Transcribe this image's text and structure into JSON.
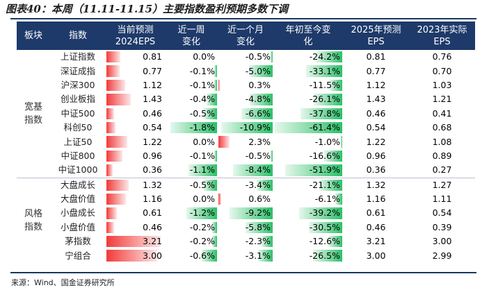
{
  "caption": "图表40：本周（11.11-11.15）主要指数盈利预期多数下调",
  "source": "来源：Wind、国金证券研究所",
  "colors": {
    "header_bg": "#1e3a6a",
    "neg": "#2cc068",
    "pos": "#f23a3a"
  },
  "headers": {
    "block": "板块",
    "index": "指数",
    "eps_current": "当前预测\n2024EPS",
    "chg_week": "近一周\n变化",
    "chg_month": "近一个月\n变化",
    "chg_ytd": "年初至今变\n化",
    "eps_2025": "2025年预测\nEPS",
    "eps_2023": "2023年实际\nEPS"
  },
  "groups": [
    {
      "label": "宽基\n指数",
      "rows": [
        {
          "name": "上证指数",
          "eps": "0.81",
          "week": "0.0%",
          "month": "-0.5%",
          "ytd": "-24.2%",
          "eps2025": "0.81",
          "eps2023": "0.76"
        },
        {
          "name": "深证成指",
          "eps": "0.77",
          "week": "-0.1%",
          "month": "-5.0%",
          "ytd": "-33.1%",
          "eps2025": "0.77",
          "eps2023": "0.70"
        },
        {
          "name": "沪深300",
          "eps": "1.12",
          "week": "-0.1%",
          "month": "0.3%",
          "ytd": "-11.5%",
          "eps2025": "1.12",
          "eps2023": "1.03"
        },
        {
          "name": "创业板指",
          "eps": "1.43",
          "week": "-0.4%",
          "month": "-4.8%",
          "ytd": "-26.1%",
          "eps2025": "1.43",
          "eps2023": "1.21"
        },
        {
          "name": "中证500",
          "eps": "0.46",
          "week": "-0.5%",
          "month": "-6.6%",
          "ytd": "-37.8%",
          "eps2025": "0.46",
          "eps2023": "0.41"
        },
        {
          "name": "科创50",
          "eps": "0.54",
          "week": "-1.8%",
          "month": "-10.9%",
          "ytd": "-61.4%",
          "eps2025": "0.54",
          "eps2023": "0.68"
        },
        {
          "name": "上证50",
          "eps": "1.22",
          "week": "0.0%",
          "month": "2.3%",
          "ytd": "-1.0%",
          "eps2025": "1.22",
          "eps2023": "1.08"
        },
        {
          "name": "中证800",
          "eps": "0.96",
          "week": "-0.1%",
          "month": "-0.5%",
          "ytd": "-16.6%",
          "eps2025": "0.96",
          "eps2023": "0.89"
        },
        {
          "name": "中证1000",
          "eps": "0.36",
          "week": "-1.1%",
          "month": "-8.4%",
          "ytd": "-51.9%",
          "eps2025": "0.36",
          "eps2023": "0.27"
        }
      ]
    },
    {
      "label": "风格\n指数",
      "rows": [
        {
          "name": "大盘成长",
          "eps": "1.32",
          "week": "-0.5%",
          "month": "-3.4%",
          "ytd": "-21.1%",
          "eps2025": "1.32",
          "eps2023": "1.27"
        },
        {
          "name": "大盘价值",
          "eps": "1.16",
          "week": "0.0%",
          "month": "0.6%",
          "ytd": "-6.1%",
          "eps2025": "1.16",
          "eps2023": "1.11"
        },
        {
          "name": "小盘成长",
          "eps": "0.61",
          "week": "-1.2%",
          "month": "-9.2%",
          "ytd": "-39.2%",
          "eps2025": "0.61",
          "eps2023": "0.54"
        },
        {
          "name": "小盘价值",
          "eps": "0.46",
          "week": "-0.2%",
          "month": "-5.8%",
          "ytd": "-30.5%",
          "eps2025": "0.46",
          "eps2023": "0.39"
        },
        {
          "name": "茅指数",
          "eps": "3.21",
          "week": "-0.2%",
          "month": "-2.3%",
          "ytd": "-12.6%",
          "eps2025": "3.21",
          "eps2023": "3.00"
        },
        {
          "name": "宁组合",
          "eps": "3.00",
          "week": "-0.6%",
          "month": "-3.1%",
          "ytd": "-26.5%",
          "eps2025": "3.00",
          "eps2023": "2.99"
        }
      ]
    }
  ]
}
